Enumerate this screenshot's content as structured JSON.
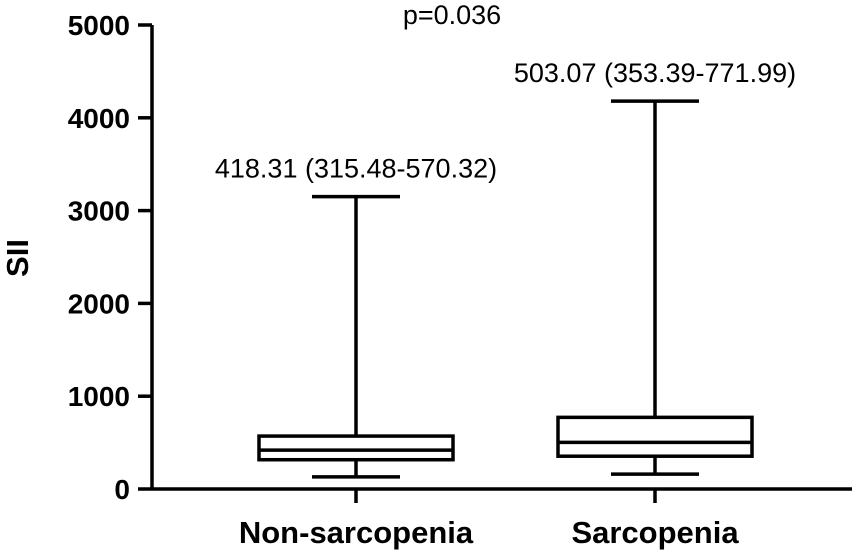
{
  "chart_data": {
    "type": "box",
    "ylabel": "SII",
    "ylim": [
      0,
      5000
    ],
    "yticks": [
      0,
      1000,
      2000,
      3000,
      4000,
      5000
    ],
    "categories": [
      "Non-sarcopenia",
      "Sarcopenia"
    ],
    "boxes": [
      {
        "category": "Non-sarcopenia",
        "min": 130,
        "q1": 315.48,
        "median": 418.31,
        "q3": 570.32,
        "max": 3150,
        "annotation": "418.31 (315.48-570.32)"
      },
      {
        "category": "Sarcopenia",
        "min": 160,
        "q1": 353.39,
        "median": 503.07,
        "q3": 771.99,
        "max": 4180,
        "annotation": "503.07 (353.39-771.99)"
      }
    ],
    "p_value_label": "p=0.036",
    "grid": false
  }
}
